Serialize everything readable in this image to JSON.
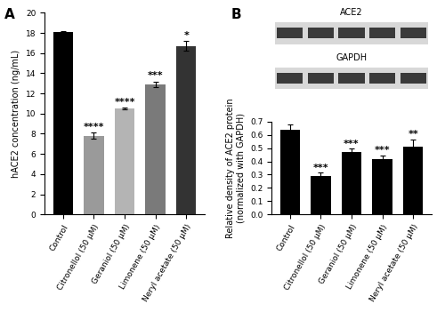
{
  "chart_data": [
    {
      "type": "bar",
      "panel_label": "A",
      "y_label": "hACE2 concentration (ng/mL)",
      "categories": [
        "Control",
        "Citronellol (50 μM)",
        "Geraniol (50 μM)",
        "Limonene (50 μM)",
        "Neryl acetate (50 μM)"
      ],
      "values": [
        18.1,
        7.8,
        10.5,
        12.9,
        16.7
      ],
      "errors": [
        0.1,
        0.3,
        0.1,
        0.3,
        0.5
      ],
      "annotations": [
        null,
        "****",
        "****",
        "***",
        "*"
      ],
      "colors": [
        "#000000",
        "#9a9a9a",
        "#b4b4b4",
        "#7a7a7a",
        "#333333"
      ],
      "ylim": [
        0,
        20
      ],
      "yticks": [
        0,
        2,
        4,
        6,
        8,
        10,
        12,
        14,
        16,
        18,
        20
      ],
      "grid": false
    },
    {
      "type": "bar",
      "panel_label": "B",
      "y_label": "Relative density of ACE2 protein\n(normalized with GAPDH)",
      "categories": [
        "Control",
        "Citronellol (50 μM)",
        "Geraniol (50 μM)",
        "Limonene (50 μM)",
        "Neryl acetate (50 μM)"
      ],
      "values": [
        0.64,
        0.29,
        0.47,
        0.42,
        0.51
      ],
      "errors": [
        0.04,
        0.025,
        0.025,
        0.025,
        0.055
      ],
      "annotations": [
        null,
        "***",
        "***",
        "***",
        "**"
      ],
      "color": "#000000",
      "ylim": [
        0,
        0.7
      ],
      "yticks": [
        0.0,
        0.1,
        0.2,
        0.3,
        0.4,
        0.5,
        0.6,
        0.7
      ],
      "grid": false
    }
  ],
  "blot": {
    "labels": [
      "ACE2",
      "GAPDH"
    ]
  }
}
